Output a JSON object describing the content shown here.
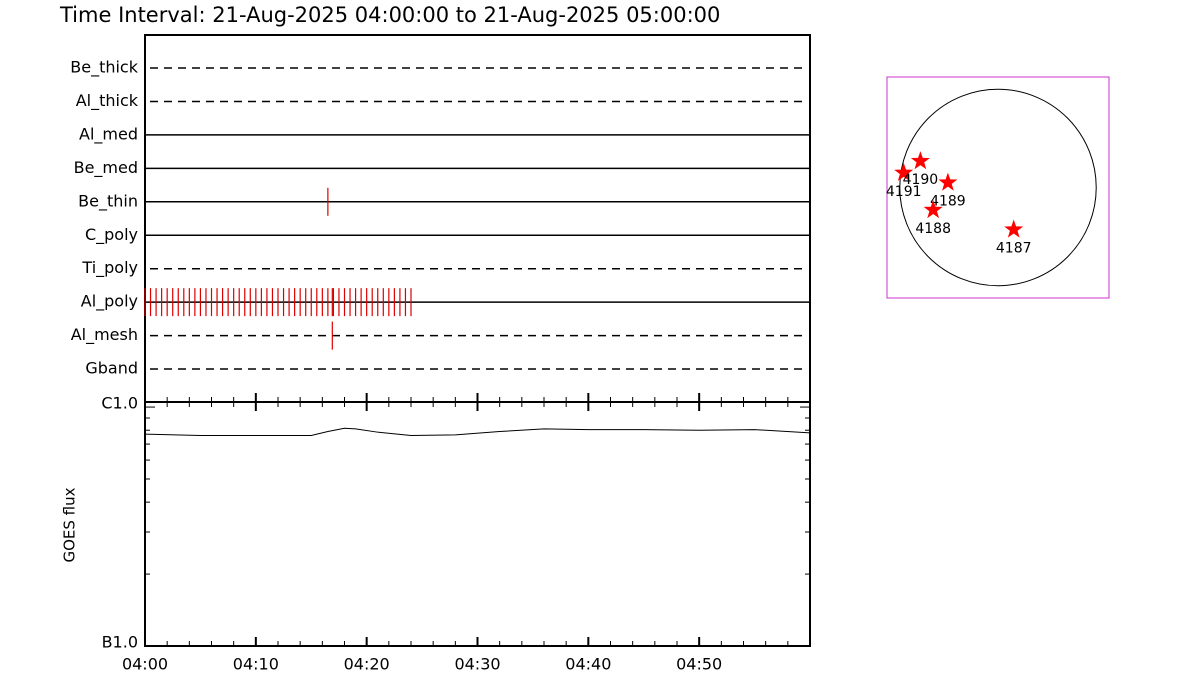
{
  "chart_data": [
    {
      "type": "timeline",
      "title": "Time Interval: 21-Aug-2025 04:00:00 to 21-Aug-2025 05:00:00",
      "xlim": [
        0,
        60
      ],
      "color": "#dd0000",
      "rows": [
        {
          "name": "Be_thick",
          "dashed": true,
          "events": []
        },
        {
          "name": "Al_thick",
          "dashed": true,
          "events": []
        },
        {
          "name": "Al_med",
          "dashed": false,
          "events": []
        },
        {
          "name": "Be_med",
          "dashed": false,
          "events": []
        },
        {
          "name": "Be_thin",
          "dashed": false,
          "events": [
            16.5
          ]
        },
        {
          "name": "C_poly",
          "dashed": false,
          "events": []
        },
        {
          "name": "Ti_poly",
          "dashed": true,
          "events": []
        },
        {
          "name": "Al_poly",
          "dashed": false,
          "events": [
            0,
            0.5,
            1,
            1.5,
            2,
            2.5,
            3,
            3.5,
            4,
            4.5,
            5,
            5.5,
            6,
            6.5,
            7,
            7.5,
            8,
            8.5,
            9,
            9.5,
            10,
            10.5,
            11,
            11.5,
            12,
            12.5,
            13,
            13.5,
            14,
            14.5,
            15,
            15.5,
            16,
            16.5,
            16.9,
            17,
            17.5,
            18,
            18.5,
            19,
            19.5,
            20,
            20.5,
            21,
            21.5,
            22,
            22.5,
            23,
            23.5,
            24
          ]
        },
        {
          "name": "Al_mesh",
          "dashed": true,
          "events": [
            16.9
          ]
        },
        {
          "name": "Gband",
          "dashed": true,
          "events": []
        }
      ]
    },
    {
      "type": "line",
      "ylabel": "GOES flux",
      "log": true,
      "color": "#000000",
      "xlim": [
        0,
        60
      ],
      "xticks": [
        {
          "value": 0,
          "label": "04:00"
        },
        {
          "value": 10,
          "label": "04:10"
        },
        {
          "value": 20,
          "label": "04:20"
        },
        {
          "value": 30,
          "label": "04:30"
        },
        {
          "value": 40,
          "label": "04:40"
        },
        {
          "value": 50,
          "label": "04:50"
        }
      ],
      "xminor": [
        2,
        4,
        6,
        8,
        12,
        14,
        16,
        18,
        22,
        24,
        26,
        28,
        32,
        34,
        36,
        38,
        42,
        44,
        46,
        48,
        52,
        54,
        56,
        58
      ],
      "ylim": [
        1e-07,
        1.05e-06
      ],
      "yticks": [
        {
          "value": 1e-07,
          "label": "B1.0"
        },
        {
          "value": 1e-06,
          "label": "C1.0"
        }
      ],
      "yminor": [
        2e-07,
        3e-07,
        4e-07,
        5e-07,
        6e-07,
        7e-07,
        8e-07,
        9e-07
      ],
      "x": [
        0,
        5,
        10,
        15,
        16.5,
        18,
        19,
        21,
        24,
        28,
        32,
        36,
        40,
        45,
        50,
        55,
        60
      ],
      "values": [
        7.7e-07,
        7.6e-07,
        7.6e-07,
        7.6e-07,
        7.9e-07,
        8.15e-07,
        8.1e-07,
        7.85e-07,
        7.6e-07,
        7.65e-07,
        7.9e-07,
        8.1e-07,
        8.05e-07,
        8.05e-07,
        8e-07,
        8.05e-07,
        7.8e-07
      ]
    },
    {
      "type": "scatter",
      "color": "#ff0000",
      "frame_color": "#cc33cc",
      "xlim": [
        -1.13,
        1.13
      ],
      "ylim": [
        -1.13,
        1.13
      ],
      "x": [
        -0.96,
        -0.79,
        -0.51,
        -0.66,
        0.16
      ],
      "y": [
        0.15,
        0.27,
        0.05,
        -0.23,
        -0.43
      ],
      "labels": [
        "4191",
        "4190",
        "4189",
        "4188",
        "4187"
      ]
    }
  ]
}
